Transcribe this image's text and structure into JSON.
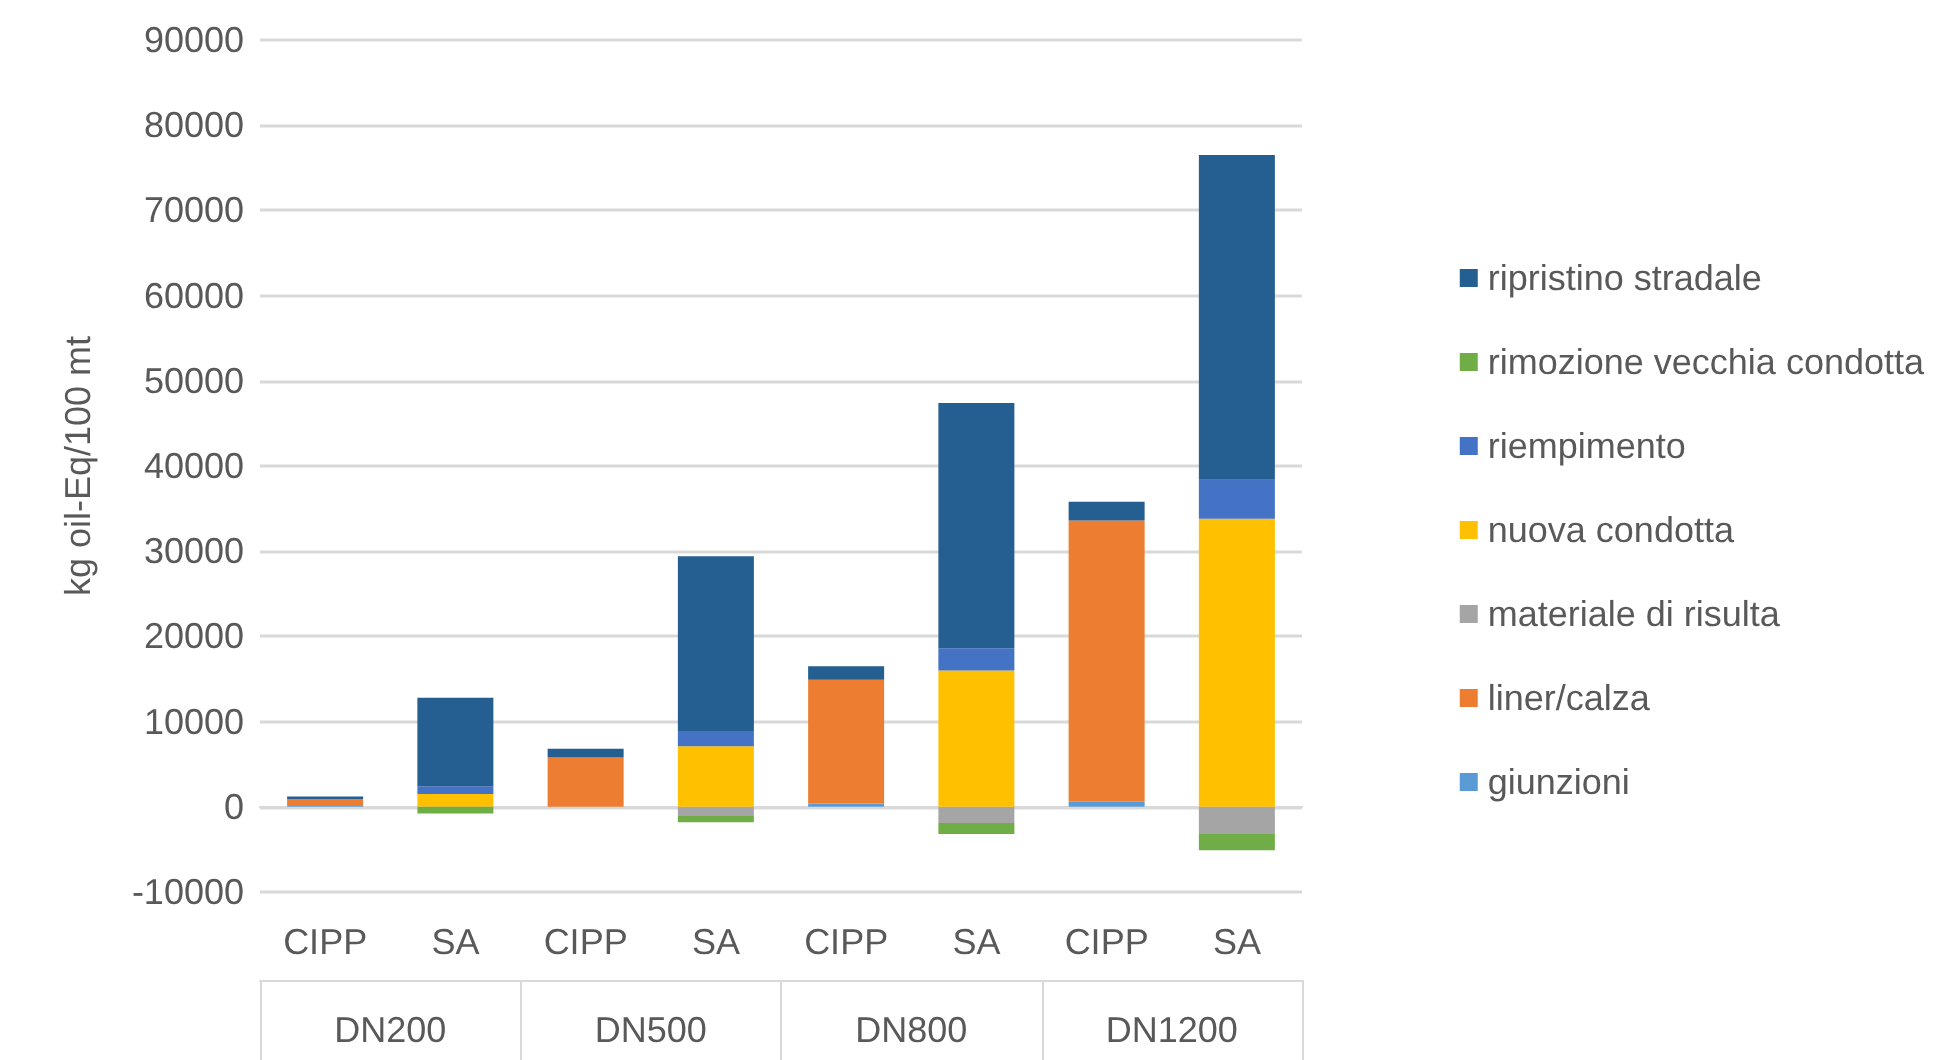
{
  "chart_data": {
    "type": "bar",
    "stacked": true,
    "ylabel": "kg oil-Eq/100 mt",
    "categories": [
      "CIPP",
      "SA",
      "CIPP",
      "SA",
      "CIPP",
      "SA",
      "CIPP",
      "SA"
    ],
    "annotations": [
      "DN200",
      "DN500",
      "DN800",
      "DN1200"
    ],
    "series": [
      {
        "name": "giunzioni",
        "color": "#5b9bd5",
        "values": [
          100,
          0,
          0,
          0,
          400,
          0,
          600,
          0
        ]
      },
      {
        "name": "liner/calza",
        "color": "#ed7d31",
        "values": [
          800,
          0,
          5800,
          0,
          14500,
          0,
          33000,
          0
        ]
      },
      {
        "name": "materiale di risulta",
        "color": "#a5a5a5",
        "values": [
          0,
          null,
          0,
          -1000,
          0,
          -1900,
          0,
          -3200
        ]
      },
      {
        "name": "nuova condotta",
        "color": "#ffc000",
        "values": [
          0,
          1500,
          0,
          7100,
          0,
          16000,
          0,
          33800
        ]
      },
      {
        "name": "riempimento",
        "color": "#4472c4",
        "values": [
          0,
          900,
          0,
          1800,
          0,
          2600,
          0,
          4600
        ]
      },
      {
        "name": "rimozione vecchia condotta",
        "color": "#70ad47",
        "values": [
          0,
          -800,
          0,
          -800,
          0,
          -1300,
          0,
          -1900
        ]
      },
      {
        "name": "ripristino stradale",
        "color": "#255e91",
        "values": [
          300,
          10400,
          1000,
          20500,
          1600,
          28800,
          2200,
          38100
        ]
      }
    ],
    "ylim": [
      -10000,
      90000
    ],
    "yticks": [
      -10000,
      0,
      10000,
      20000,
      30000,
      40000,
      50000,
      60000,
      70000,
      80000,
      90000
    ],
    "grid": "y",
    "legend": "right"
  }
}
